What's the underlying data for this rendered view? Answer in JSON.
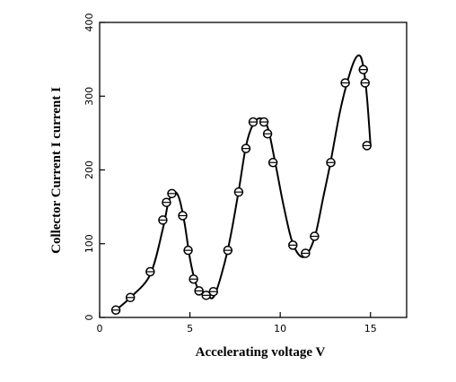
{
  "chart_data": {
    "type": "scatter",
    "title": "",
    "xlabel": "Accelerating voltage V",
    "ylabel": "Collector Current I current I",
    "xlim": [
      0,
      17
    ],
    "ylim": [
      0,
      400
    ],
    "xticks": [
      0,
      5,
      10,
      15
    ],
    "yticks": [
      0,
      100,
      200,
      300,
      400
    ],
    "xtick_labels": [
      "0",
      "5",
      "10",
      "15"
    ],
    "ytick_labels": [
      "0",
      "100",
      "200",
      "300",
      "400"
    ],
    "grid": false,
    "legend": "none",
    "colors": {
      "line": "#000000",
      "marker": "#000000",
      "axis": "#000000"
    },
    "series": [
      {
        "marker": "open-circle",
        "x": [
          0.9,
          1.7,
          2.8,
          3.5,
          3.7,
          4.0,
          4.6,
          4.9,
          5.2,
          5.5,
          5.9,
          6.3,
          7.1,
          7.7,
          8.1,
          8.5,
          9.1,
          9.3,
          9.6,
          10.7,
          11.4,
          11.9,
          12.8,
          13.6,
          14.6,
          14.7,
          14.8
        ],
        "y": [
          10,
          27,
          62,
          132,
          156,
          168,
          138,
          91,
          52,
          36,
          30,
          35,
          91,
          170,
          229,
          265,
          265,
          249,
          210,
          98,
          87,
          110,
          210,
          318,
          336,
          318,
          233
        ]
      }
    ],
    "curve": {
      "x": [
        0.9,
        1.7,
        2.8,
        3.5,
        3.8,
        4.1,
        4.4,
        4.7,
        5.0,
        5.3,
        5.6,
        6.0,
        6.4,
        7.1,
        7.7,
        8.1,
        8.5,
        8.9,
        9.3,
        9.7,
        10.2,
        10.7,
        11.3,
        11.9,
        12.4,
        12.8,
        13.3,
        13.7,
        14.1,
        14.4,
        14.6,
        14.8,
        15.0
      ],
      "y": [
        10,
        27,
        58,
        120,
        155,
        170,
        162,
        128,
        80,
        48,
        33,
        28,
        32,
        92,
        172,
        232,
        262,
        270,
        258,
        213,
        150,
        100,
        82,
        108,
        165,
        212,
        278,
        318,
        348,
        355,
        340,
        300,
        233
      ]
    }
  }
}
